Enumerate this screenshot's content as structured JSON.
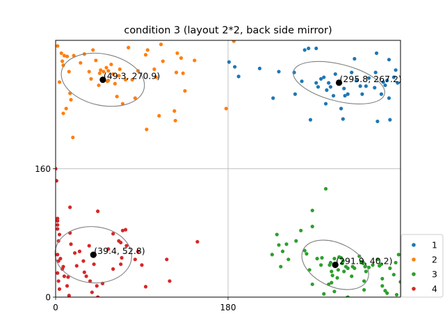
{
  "chart_data": {
    "type": "scatter",
    "title": "condition 3 (layout 2*2, back side mirror)",
    "xlabel": "",
    "ylabel": "",
    "xlim": [
      0,
      360
    ],
    "ylim": [
      0,
      320
    ],
    "xticks": [
      0,
      180
    ],
    "yticks": [
      0,
      160
    ],
    "grid": true,
    "legend": {
      "position": "right-bottom",
      "entries": [
        "1",
        "2",
        "3",
        "4"
      ]
    },
    "series": [
      {
        "name": "1",
        "color": "#1f77b4",
        "mean": [
          295.8,
          267.2
        ],
        "mean_label": "(295.8, 267.2)",
        "ellipse": {
          "cx": 295.8,
          "cy": 267.2,
          "rx": 49,
          "ry": 23,
          "angle_deg": -14
        },
        "points": [
          [
            181,
            293
          ],
          [
            187,
            287
          ],
          [
            191,
            275
          ],
          [
            213,
            285
          ],
          [
            227,
            248
          ],
          [
            233,
            281
          ],
          [
            249,
            280
          ],
          [
            250,
            253
          ],
          [
            257,
            269
          ],
          [
            260,
            308
          ],
          [
            264,
            310
          ],
          [
            272,
            310
          ],
          [
            266,
            221
          ],
          [
            272,
            267
          ],
          [
            274,
            262
          ],
          [
            277,
            272
          ],
          [
            280,
            274
          ],
          [
            282,
            241
          ],
          [
            283,
            258
          ],
          [
            285,
            267
          ],
          [
            287,
            262
          ],
          [
            290,
            251
          ],
          [
            292,
            278
          ],
          [
            295,
            268
          ],
          [
            298,
            235
          ],
          [
            300,
            222
          ],
          [
            301,
            260
          ],
          [
            302,
            251
          ],
          [
            305,
            253
          ],
          [
            309,
            280
          ],
          [
            312,
            297
          ],
          [
            314,
            270
          ],
          [
            318,
            263
          ],
          [
            320,
            253
          ],
          [
            324,
            263
          ],
          [
            327,
            273
          ],
          [
            333,
            261
          ],
          [
            334,
            280
          ],
          [
            335,
            304
          ],
          [
            336,
            219
          ],
          [
            340,
            253
          ],
          [
            342,
            268
          ],
          [
            344,
            264
          ],
          [
            346,
            270
          ],
          [
            348,
            248
          ],
          [
            348,
            296
          ],
          [
            349,
            221
          ],
          [
            353,
            274
          ],
          [
            355,
            283
          ],
          [
            357,
            267
          ]
        ]
      },
      {
        "name": "2",
        "color": "#ff7f0e",
        "mean": [
          49.3,
          270.9
        ],
        "mean_label": "(49.3, 270.9)",
        "ellipse": {
          "cx": 49.3,
          "cy": 270.9,
          "rx": 44,
          "ry": 32,
          "angle_deg": -12
        },
        "points": [
          [
            2,
            313
          ],
          [
            6,
            304
          ],
          [
            7,
            294
          ],
          [
            8,
            289
          ],
          [
            9,
            301
          ],
          [
            12,
            300
          ],
          [
            14,
            281
          ],
          [
            15,
            254
          ],
          [
            16,
            246
          ],
          [
            11,
            235
          ],
          [
            8,
            229
          ],
          [
            18,
            199
          ],
          [
            26,
            292
          ],
          [
            30,
            303
          ],
          [
            35,
            281
          ],
          [
            42,
            295
          ],
          [
            46,
            279
          ],
          [
            45,
            264
          ],
          [
            47,
            283
          ],
          [
            50,
            281
          ],
          [
            53,
            286
          ],
          [
            54,
            269
          ],
          [
            55,
            270
          ],
          [
            58,
            290
          ],
          [
            60,
            278
          ],
          [
            62,
            266
          ],
          [
            64,
            250
          ],
          [
            67,
            284
          ],
          [
            70,
            241
          ],
          [
            76,
            311
          ],
          [
            80,
            271
          ],
          [
            83,
            248
          ],
          [
            86,
            282
          ],
          [
            94,
            302
          ],
          [
            96,
            308
          ],
          [
            103,
            284
          ],
          [
            105,
            274
          ],
          [
            112,
            294
          ],
          [
            95,
            209
          ],
          [
            108,
            226
          ],
          [
            110,
            315
          ],
          [
            127,
            304
          ],
          [
            131,
            298
          ],
          [
            133,
            279
          ],
          [
            126,
            280
          ],
          [
            135,
            257
          ],
          [
            145,
            295
          ],
          [
            124,
            232
          ],
          [
            125,
            220
          ],
          [
            178,
            235
          ],
          [
            186,
            319
          ],
          [
            37,
            272
          ],
          [
            73,
            271
          ],
          [
            55,
            282
          ],
          [
            39,
            308
          ],
          [
            19,
            301
          ],
          [
            4,
            268
          ],
          [
            66,
            276
          ]
        ]
      },
      {
        "name": "3",
        "color": "#2ca02c",
        "mean": [
          291.9,
          40.2
        ],
        "mean_label": "(291.9, 40.2)",
        "ellipse": {
          "cx": 291.9,
          "cy": 40.2,
          "rx": 37,
          "ry": 27,
          "angle_deg": -25
        },
        "points": [
          [
            226,
            53
          ],
          [
            231,
            78
          ],
          [
            233,
            65
          ],
          [
            235,
            38
          ],
          [
            237,
            57
          ],
          [
            241,
            66
          ],
          [
            243,
            47
          ],
          [
            251,
            70
          ],
          [
            256,
            83
          ],
          [
            260,
            58
          ],
          [
            262,
            54
          ],
          [
            265,
            34
          ],
          [
            268,
            88
          ],
          [
            268,
            108
          ],
          [
            268,
            16
          ],
          [
            273,
            48
          ],
          [
            277,
            40
          ],
          [
            278,
            49
          ],
          [
            280,
            4
          ],
          [
            282,
            135
          ],
          [
            285,
            16
          ],
          [
            286,
            40
          ],
          [
            287,
            43
          ],
          [
            288,
            32
          ],
          [
            288,
            18
          ],
          [
            289,
            27
          ],
          [
            291,
            48
          ],
          [
            291,
            7
          ],
          [
            294,
            24
          ],
          [
            295,
            34
          ],
          [
            296,
            50
          ],
          [
            298,
            49
          ],
          [
            299,
            42
          ],
          [
            300,
            45
          ],
          [
            301,
            32
          ],
          [
            303,
            38
          ],
          [
            305,
            36
          ],
          [
            305,
            0
          ],
          [
            309,
            26
          ],
          [
            310,
            38
          ],
          [
            312,
            36
          ],
          [
            317,
            51
          ],
          [
            319,
            44
          ],
          [
            321,
            42
          ],
          [
            322,
            20
          ],
          [
            322,
            9
          ],
          [
            323,
            38
          ],
          [
            324,
            32
          ],
          [
            327,
            37
          ],
          [
            331,
            40
          ],
          [
            336,
            47
          ],
          [
            338,
            39
          ],
          [
            340,
            41
          ],
          [
            341,
            23
          ],
          [
            341,
            14
          ],
          [
            344,
            8
          ],
          [
            346,
            5
          ],
          [
            349,
            36
          ],
          [
            353,
            28
          ],
          [
            355,
            43
          ],
          [
            358,
            53
          ],
          [
            360,
            19
          ],
          [
            356,
            3
          ],
          [
            304,
            -1
          ]
        ]
      },
      {
        "name": "4",
        "color": "#d62728",
        "mean": [
          39.4,
          52.8
        ],
        "mean_label": "(39.4, 52.8)",
        "ellipse": {
          "cx": 39.4,
          "cy": 52.8,
          "rx": 40,
          "ry": 35,
          "angle_deg": -5
        },
        "points": [
          [
            0,
            160
          ],
          [
            1,
            145
          ],
          [
            2,
            98
          ],
          [
            2,
            95
          ],
          [
            2,
            90
          ],
          [
            2,
            85
          ],
          [
            3,
            70
          ],
          [
            2,
            53
          ],
          [
            3,
            45
          ],
          [
            2,
            30
          ],
          [
            3,
            20
          ],
          [
            4,
            10
          ],
          [
            4,
            78
          ],
          [
            5,
            48
          ],
          [
            7,
            35
          ],
          [
            8,
            38
          ],
          [
            9,
            26
          ],
          [
            12,
            14
          ],
          [
            13,
            25
          ],
          [
            14,
            2
          ],
          [
            15,
            112
          ],
          [
            15,
            80
          ],
          [
            16,
            66
          ],
          [
            20,
            55
          ],
          [
            22,
            39
          ],
          [
            25,
            57
          ],
          [
            29,
            45
          ],
          [
            30,
            31
          ],
          [
            32,
            26
          ],
          [
            36,
            20
          ],
          [
            38,
            6
          ],
          [
            40,
            41
          ],
          [
            43,
            14
          ],
          [
            44,
            0
          ],
          [
            44,
            107
          ],
          [
            49,
            17
          ],
          [
            55,
            60
          ],
          [
            60,
            35
          ],
          [
            60,
            79
          ],
          [
            66,
            70
          ],
          [
            68,
            41
          ],
          [
            68,
            68
          ],
          [
            69,
            49
          ],
          [
            70,
            83
          ],
          [
            73,
            84
          ],
          [
            74,
            64
          ],
          [
            83,
            47
          ],
          [
            86,
            57
          ],
          [
            90,
            40
          ],
          [
            94,
            13
          ],
          [
            116,
            47
          ],
          [
            119,
            20
          ],
          [
            148,
            69
          ],
          [
            14,
            0
          ],
          [
            35,
            64
          ]
        ]
      }
    ]
  }
}
